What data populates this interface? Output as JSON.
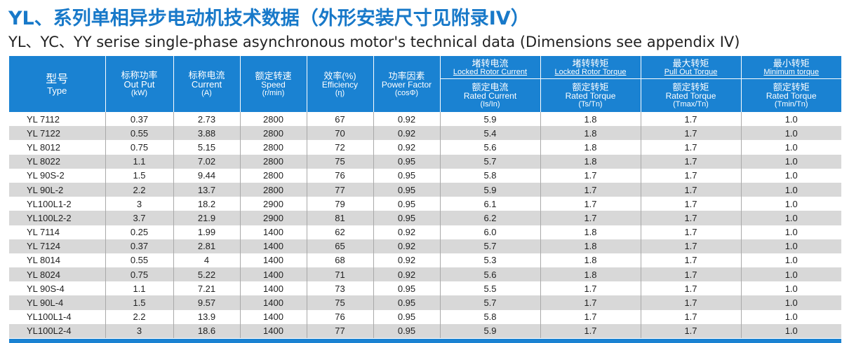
{
  "title_cn": "YL、系列单相异步电动机技术数据（外形安装尺寸见附录IV）",
  "title_en": "YL、YC、YY serise  single-phase asynchronous motor's technical data (Dimensions see appendix IV)",
  "headers": [
    {
      "l1": "型号",
      "l2": "Type"
    },
    {
      "l1": "标称功率",
      "l2": "Out Put",
      "l3": "(kW)"
    },
    {
      "l1": "标称电流",
      "l2": "Current",
      "l3": "(A)"
    },
    {
      "l1": "额定转速",
      "l2": "Speed",
      "l3": "(r/min)"
    },
    {
      "l1": "效率(%)",
      "l2": "Efficiency",
      "l3": "(η)"
    },
    {
      "l1": "功率因素",
      "l2": "Power Factor",
      "l3": "(cosΦ)"
    },
    {
      "t1": "堵转电流",
      "t2": "Locked Rotor Current",
      "b1": "额定电流",
      "b2": "Rated Current",
      "b3": "(Is/In)"
    },
    {
      "t1": "堵转转矩",
      "t2": "Locked Rotor Torque",
      "b1": "额定转矩",
      "b2": "Rated Torque",
      "b3": "(Ts/Tn)"
    },
    {
      "t1": "最大转矩",
      "t2": "Pull Out Torque",
      "b1": "额定转矩",
      "b2": "Rated Torque",
      "b3": "(Tmax/Tn)"
    },
    {
      "t1": "最小转矩",
      "t2": "Minimum torque",
      "b1": "额定转矩",
      "b2": "Rated Torque",
      "b3": "(Tmin/Tn)"
    }
  ],
  "rows": [
    [
      "YL 7112",
      "0.37",
      "2.73",
      "2800",
      "67",
      "0.92",
      "5.9",
      "1.8",
      "1.7",
      "1.0"
    ],
    [
      "YL 7122",
      "0.55",
      "3.88",
      "2800",
      "70",
      "0.92",
      "5.4",
      "1.8",
      "1.7",
      "1.0"
    ],
    [
      "YL 8012",
      "0.75",
      "5.15",
      "2800",
      "72",
      "0.92",
      "5.6",
      "1.8",
      "1.7",
      "1.0"
    ],
    [
      "YL 8022",
      "1.1",
      "7.02",
      "2800",
      "75",
      "0.95",
      "5.7",
      "1.8",
      "1.7",
      "1.0"
    ],
    [
      "YL 90S-2",
      "1.5",
      "9.44",
      "2800",
      "76",
      "0.95",
      "5.8",
      "1.7",
      "1.7",
      "1.0"
    ],
    [
      "YL 90L-2",
      "2.2",
      "13.7",
      "2800",
      "77",
      "0.95",
      "5.9",
      "1.7",
      "1.7",
      "1.0"
    ],
    [
      "YL100L1-2",
      "3",
      "18.2",
      "2900",
      "79",
      "0.95",
      "6.1",
      "1.7",
      "1.7",
      "1.0"
    ],
    [
      "YL100L2-2",
      "3.7",
      "21.9",
      "2900",
      "81",
      "0.95",
      "6.2",
      "1.7",
      "1.7",
      "1.0"
    ],
    [
      "YL 7114",
      "0.25",
      "1.99",
      "1400",
      "62",
      "0.92",
      "6.0",
      "1.8",
      "1.7",
      "1.0"
    ],
    [
      "YL 7124",
      "0.37",
      "2.81",
      "1400",
      "65",
      "0.92",
      "5.7",
      "1.8",
      "1.7",
      "1.0"
    ],
    [
      "YL 8014",
      "0.55",
      "4",
      "1400",
      "68",
      "0.92",
      "5.3",
      "1.8",
      "1.7",
      "1.0"
    ],
    [
      "YL 8024",
      "0.75",
      "5.22",
      "1400",
      "71",
      "0.92",
      "5.6",
      "1.8",
      "1.7",
      "1.0"
    ],
    [
      "YL 90S-4",
      "1.1",
      "7.21",
      "1400",
      "73",
      "0.95",
      "5.5",
      "1.7",
      "1.7",
      "1.0"
    ],
    [
      "YL 90L-4",
      "1.5",
      "9.57",
      "1400",
      "75",
      "0.95",
      "5.7",
      "1.7",
      "1.7",
      "1.0"
    ],
    [
      "YL100L1-4",
      "2.2",
      "13.9",
      "1400",
      "76",
      "0.95",
      "5.8",
      "1.7",
      "1.7",
      "1.0"
    ],
    [
      "YL100L2-4",
      "3",
      "18.6",
      "1400",
      "77",
      "0.95",
      "5.9",
      "1.7",
      "1.7",
      "1.0"
    ]
  ],
  "colors": {
    "title": "#1879c9",
    "header_bg": "#1a82d2",
    "row_alt": "#d8d8d8"
  }
}
